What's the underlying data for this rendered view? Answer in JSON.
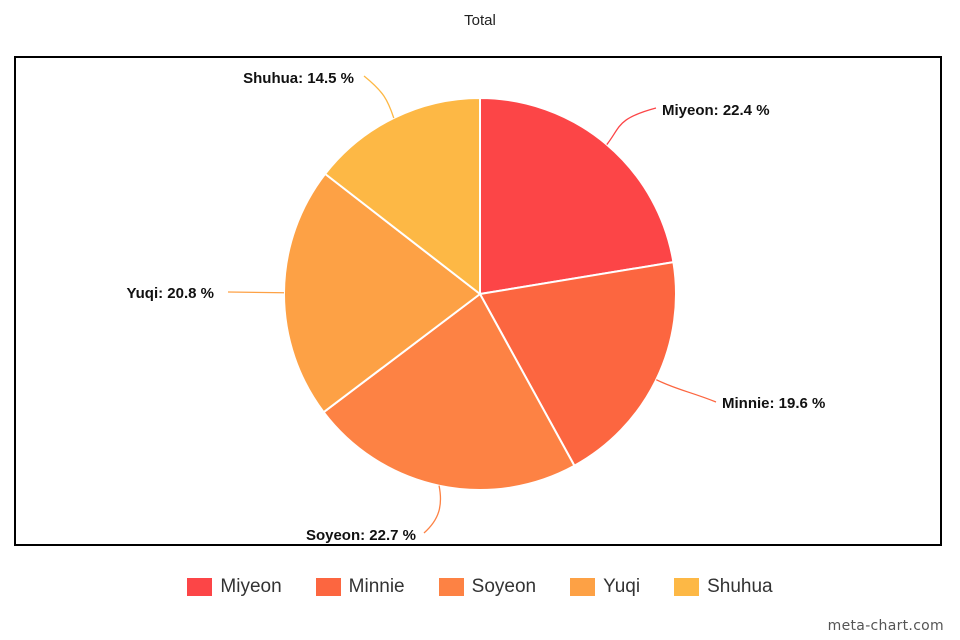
{
  "chart_data": {
    "type": "pie",
    "title": "Total",
    "slices": [
      {
        "label": "Miyeon",
        "value": 22.4,
        "display": "Miyeon: 22.4 %",
        "color": "#fc4547"
      },
      {
        "label": "Minnie",
        "value": 19.6,
        "display": "Minnie: 19.6 %",
        "color": "#fc6640"
      },
      {
        "label": "Soyeon",
        "value": 22.7,
        "display": "Soyeon: 22.7 %",
        "color": "#fd8244"
      },
      {
        "label": "Yuqi",
        "value": 20.8,
        "display": "Yuqi: 20.8 %",
        "color": "#fda145"
      },
      {
        "label": "Shuhua",
        "value": 14.5,
        "display": "Shuhua: 14.5 %",
        "color": "#fdb845"
      }
    ],
    "legend_position": "bottom"
  },
  "credit": "meta-chart.com"
}
